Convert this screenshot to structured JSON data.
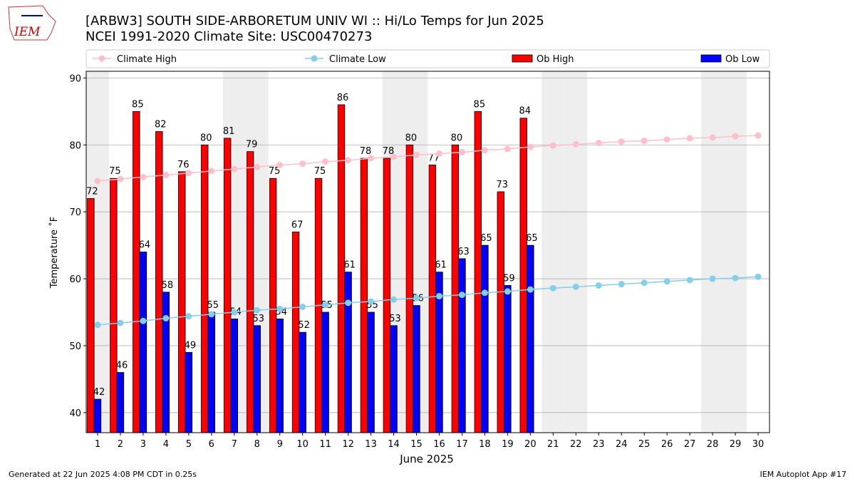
{
  "chart_data": {
    "type": "bar",
    "title": "[ARBW3] SOUTH SIDE-ARBORETUM UNIV WI :: Hi/Lo Temps for Jun 2025",
    "subtitle": "NCEI 1991-2020 Climate Site: USC00470273",
    "x_label": "June 2025",
    "y_label": "Temperature ˚F",
    "x": [
      1,
      2,
      3,
      4,
      5,
      6,
      7,
      8,
      9,
      10,
      11,
      12,
      13,
      14,
      15,
      16,
      17,
      18,
      19,
      20,
      21,
      22,
      23,
      24,
      25,
      26,
      27,
      28,
      29,
      30
    ],
    "xlim": [
      0.5,
      30.5
    ],
    "xticks": [
      1,
      2,
      3,
      4,
      5,
      6,
      7,
      8,
      9,
      10,
      11,
      12,
      13,
      14,
      15,
      16,
      17,
      18,
      19,
      20,
      21,
      22,
      23,
      24,
      25,
      26,
      27,
      28,
      29,
      30
    ],
    "ylim": [
      37,
      91
    ],
    "yticks": [
      40,
      50,
      60,
      70,
      80,
      90
    ],
    "grid": true,
    "shaded_days": [
      1,
      7,
      8,
      14,
      15,
      21,
      22,
      28,
      29
    ],
    "series": [
      {
        "name": "Climate High",
        "type": "line",
        "color": "#ffc0cb",
        "values": [
          74.6,
          74.9,
          75.2,
          75.5,
          75.8,
          76.1,
          76.4,
          76.7,
          77.0,
          77.2,
          77.5,
          77.7,
          78.0,
          78.2,
          78.5,
          78.7,
          78.9,
          79.2,
          79.4,
          79.7,
          79.9,
          80.1,
          80.3,
          80.5,
          80.6,
          80.8,
          81.0,
          81.1,
          81.3,
          81.4
        ]
      },
      {
        "name": "Climate Low",
        "type": "line",
        "color": "#87ceeb",
        "values": [
          53.1,
          53.4,
          53.7,
          54.1,
          54.4,
          54.7,
          55.0,
          55.3,
          55.5,
          55.8,
          56.1,
          56.4,
          56.6,
          56.9,
          57.1,
          57.4,
          57.6,
          57.9,
          58.1,
          58.4,
          58.6,
          58.8,
          59.0,
          59.2,
          59.4,
          59.6,
          59.8,
          60.0,
          60.1,
          60.3
        ]
      },
      {
        "name": "Ob High",
        "type": "bar",
        "color": "#ff0000",
        "values": [
          72,
          75,
          85,
          82,
          76,
          80,
          81,
          79,
          75,
          67,
          75,
          86,
          78,
          78,
          80,
          77,
          80,
          85,
          73,
          84,
          null,
          null,
          null,
          null,
          null,
          null,
          null,
          null,
          null,
          null
        ]
      },
      {
        "name": "Ob Low",
        "type": "bar",
        "color": "#0000ff",
        "values": [
          42,
          46,
          64,
          58,
          49,
          55,
          54,
          53,
          54,
          52,
          55,
          61,
          55,
          53,
          56,
          61,
          63,
          65,
          59,
          65,
          null,
          null,
          null,
          null,
          null,
          null,
          null,
          null,
          null,
          null
        ]
      }
    ]
  },
  "logo": "IEM",
  "footer": {
    "left": "Generated at 22 Jun 2025 4:08 PM CDT in 0.25s",
    "right": "IEM Autoplot App #17"
  }
}
